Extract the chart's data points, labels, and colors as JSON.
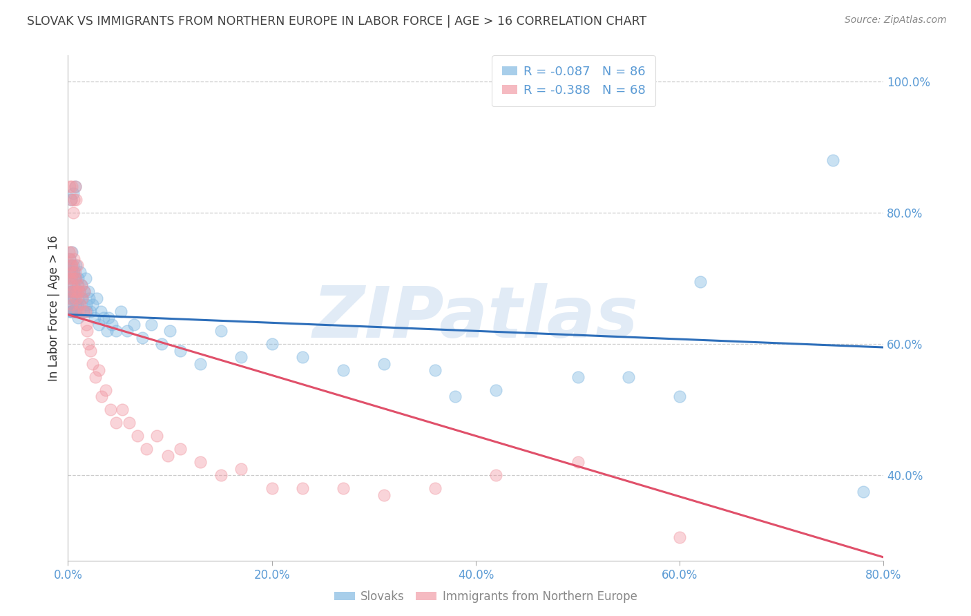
{
  "title": "SLOVAK VS IMMIGRANTS FROM NORTHERN EUROPE IN LABOR FORCE | AGE > 16 CORRELATION CHART",
  "source": "Source: ZipAtlas.com",
  "ylabel": "In Labor Force | Age > 16",
  "xlim": [
    0.0,
    0.8
  ],
  "ylim": [
    0.27,
    1.04
  ],
  "blue_R": -0.087,
  "blue_N": 86,
  "pink_R": -0.388,
  "pink_N": 68,
  "blue_color": "#7ab4e0",
  "pink_color": "#f095a0",
  "blue_line_color": "#2e6fba",
  "pink_line_color": "#e0506a",
  "legend_label_blue": "Slovaks",
  "legend_label_pink": "Immigrants from Northern Europe",
  "watermark": "ZIPatlas",
  "background_color": "#ffffff",
  "grid_color": "#cccccc",
  "title_color": "#444444",
  "axis_color": "#5b9bd5",
  "blue_trendline": [
    0.0,
    0.645,
    0.8,
    0.595
  ],
  "pink_trendline": [
    0.0,
    0.645,
    0.8,
    0.275
  ],
  "blue_x": [
    0.001,
    0.001,
    0.001,
    0.002,
    0.002,
    0.002,
    0.002,
    0.003,
    0.003,
    0.003,
    0.003,
    0.003,
    0.004,
    0.004,
    0.004,
    0.004,
    0.005,
    0.005,
    0.005,
    0.005,
    0.005,
    0.006,
    0.006,
    0.006,
    0.006,
    0.007,
    0.007,
    0.007,
    0.008,
    0.008,
    0.008,
    0.009,
    0.009,
    0.01,
    0.01,
    0.01,
    0.011,
    0.012,
    0.012,
    0.013,
    0.014,
    0.015,
    0.016,
    0.017,
    0.018,
    0.019,
    0.02,
    0.021,
    0.022,
    0.024,
    0.026,
    0.028,
    0.03,
    0.032,
    0.035,
    0.038,
    0.04,
    0.043,
    0.047,
    0.052,
    0.058,
    0.065,
    0.073,
    0.082,
    0.092,
    0.1,
    0.11,
    0.13,
    0.15,
    0.17,
    0.2,
    0.23,
    0.27,
    0.31,
    0.36,
    0.42,
    0.5,
    0.38,
    0.55,
    0.6,
    0.003,
    0.005,
    0.007,
    0.75,
    0.78,
    0.62
  ],
  "blue_y": [
    0.67,
    0.7,
    0.72,
    0.68,
    0.65,
    0.71,
    0.73,
    0.67,
    0.7,
    0.65,
    0.72,
    0.68,
    0.68,
    0.71,
    0.65,
    0.74,
    0.66,
    0.7,
    0.65,
    0.68,
    0.72,
    0.67,
    0.71,
    0.65,
    0.69,
    0.68,
    0.66,
    0.7,
    0.65,
    0.68,
    0.72,
    0.66,
    0.69,
    0.67,
    0.7,
    0.64,
    0.68,
    0.66,
    0.71,
    0.69,
    0.67,
    0.65,
    0.68,
    0.7,
    0.66,
    0.65,
    0.68,
    0.67,
    0.65,
    0.66,
    0.64,
    0.67,
    0.63,
    0.65,
    0.64,
    0.62,
    0.64,
    0.63,
    0.62,
    0.65,
    0.62,
    0.63,
    0.61,
    0.63,
    0.6,
    0.62,
    0.59,
    0.57,
    0.62,
    0.58,
    0.6,
    0.58,
    0.56,
    0.57,
    0.56,
    0.53,
    0.55,
    0.52,
    0.55,
    0.52,
    0.82,
    0.83,
    0.84,
    0.88,
    0.375,
    0.695
  ],
  "pink_x": [
    0.001,
    0.001,
    0.002,
    0.002,
    0.002,
    0.003,
    0.003,
    0.003,
    0.003,
    0.004,
    0.004,
    0.004,
    0.005,
    0.005,
    0.005,
    0.006,
    0.006,
    0.007,
    0.007,
    0.008,
    0.008,
    0.009,
    0.009,
    0.01,
    0.01,
    0.011,
    0.012,
    0.013,
    0.014,
    0.015,
    0.016,
    0.017,
    0.018,
    0.019,
    0.02,
    0.022,
    0.024,
    0.027,
    0.03,
    0.033,
    0.037,
    0.042,
    0.047,
    0.053,
    0.06,
    0.068,
    0.077,
    0.087,
    0.098,
    0.11,
    0.13,
    0.15,
    0.17,
    0.2,
    0.23,
    0.27,
    0.31,
    0.36,
    0.42,
    0.5,
    0.002,
    0.003,
    0.004,
    0.005,
    0.006,
    0.007,
    0.008,
    0.6
  ],
  "pink_y": [
    0.7,
    0.74,
    0.68,
    0.71,
    0.73,
    0.7,
    0.67,
    0.72,
    0.74,
    0.69,
    0.72,
    0.66,
    0.71,
    0.68,
    0.65,
    0.73,
    0.7,
    0.71,
    0.68,
    0.7,
    0.67,
    0.72,
    0.68,
    0.69,
    0.65,
    0.68,
    0.66,
    0.69,
    0.67,
    0.65,
    0.68,
    0.65,
    0.63,
    0.62,
    0.6,
    0.59,
    0.57,
    0.55,
    0.56,
    0.52,
    0.53,
    0.5,
    0.48,
    0.5,
    0.48,
    0.46,
    0.44,
    0.46,
    0.43,
    0.44,
    0.42,
    0.4,
    0.41,
    0.38,
    0.38,
    0.38,
    0.37,
    0.38,
    0.4,
    0.42,
    0.84,
    0.82,
    0.84,
    0.8,
    0.82,
    0.84,
    0.82,
    0.305
  ]
}
